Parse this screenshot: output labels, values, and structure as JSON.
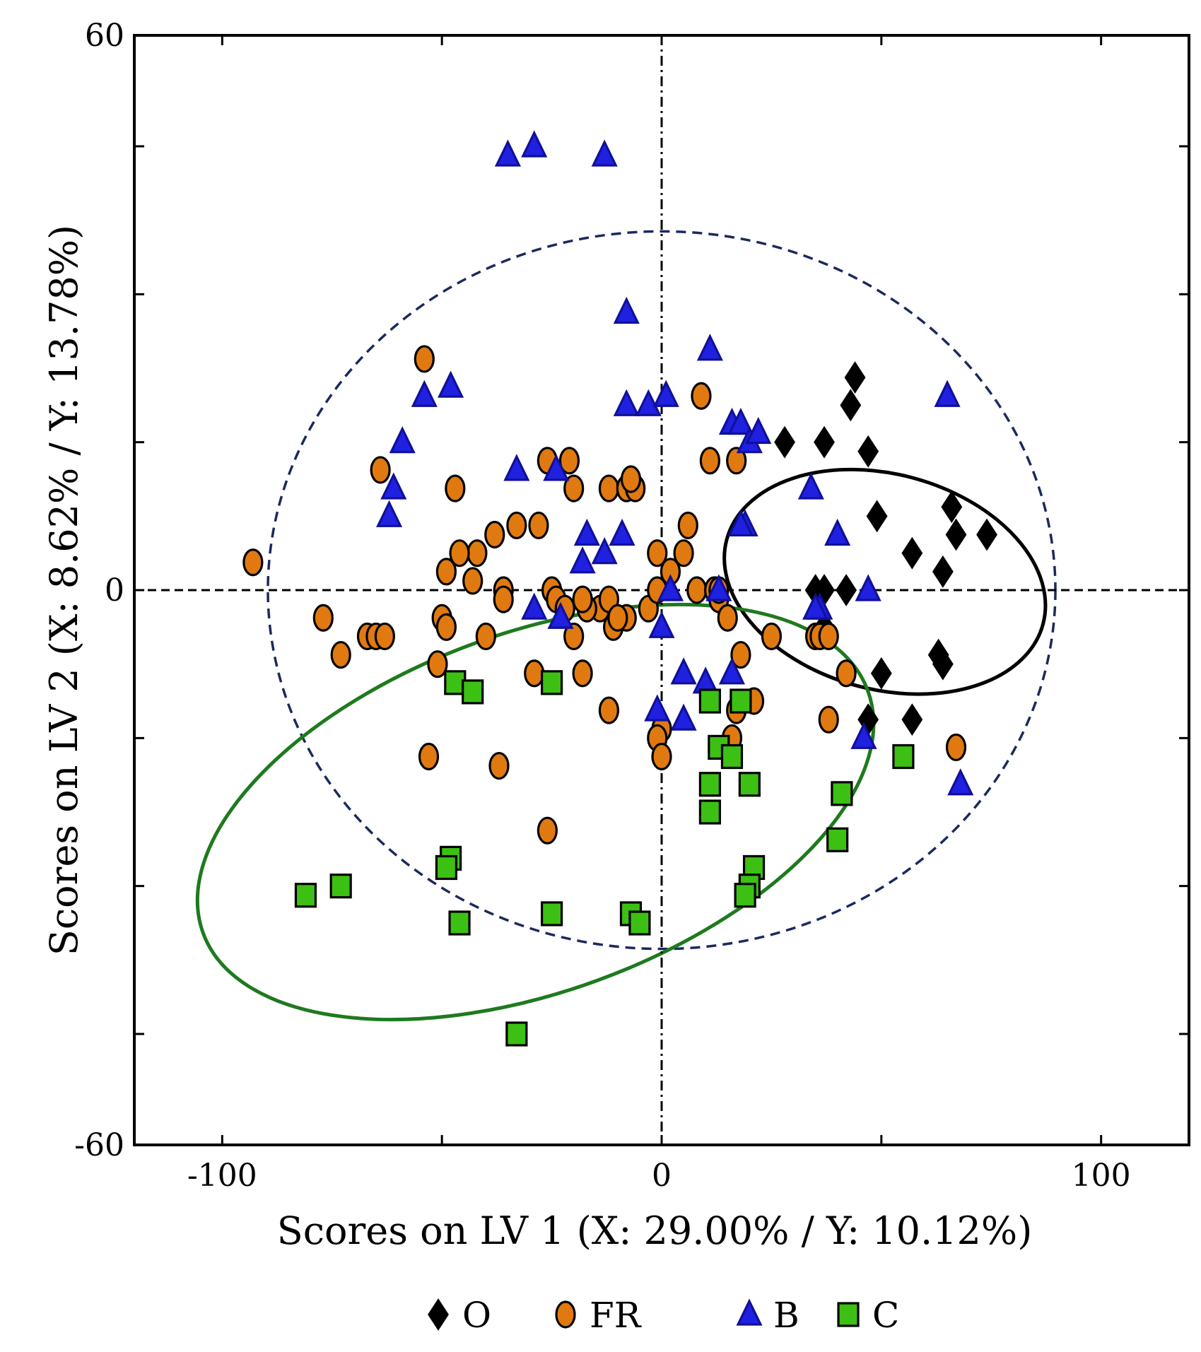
{
  "chart_data": {
    "type": "scatter",
    "xlabel": "Scores on LV 1 (X: 29.00% / Y: 10.12%)",
    "ylabel": "Scores on LV 2 (X: 8.62% / Y: 13.78%)",
    "xlim": [
      -120,
      120
    ],
    "ylim": [
      -60,
      60
    ],
    "xticks": [
      -100,
      0,
      100
    ],
    "xtick_labels": [
      "-100",
      "0",
      "100"
    ],
    "yticks": [
      -60,
      0,
      60
    ],
    "ytick_labels": [
      "-60",
      "0",
      "60"
    ],
    "minor_xticks": [
      -50,
      50
    ],
    "minor_yticks": [
      -48,
      -32,
      -16,
      16,
      32,
      48
    ],
    "reference_lines": {
      "x": 0,
      "y": 0,
      "style": "dashed"
    },
    "series": [
      {
        "name": "O",
        "marker": "diamond",
        "color": "#000000",
        "x": [
          44,
          43,
          28,
          37,
          47,
          49,
          66,
          67,
          74,
          57,
          64,
          35,
          37,
          42,
          37,
          50,
          63,
          64,
          47,
          57
        ],
        "y": [
          23,
          20,
          16,
          16,
          15,
          8,
          9,
          6,
          6,
          4,
          2,
          0,
          0,
          0,
          -4,
          -9,
          -7,
          -8,
          -14,
          -14
        ]
      },
      {
        "name": "FR",
        "marker": "circle",
        "color": "#E07A10",
        "x": [
          -54,
          9,
          -64,
          -47,
          -26,
          -21,
          -20,
          -12,
          -8,
          -6,
          -7,
          -1,
          6,
          11,
          17,
          5,
          -28,
          -33,
          -38,
          -42,
          -46,
          -49,
          -50,
          -49,
          -51,
          -43,
          -36,
          -36,
          -25,
          -14,
          -17,
          -8,
          -3,
          -1,
          2,
          8,
          12,
          13,
          13,
          15,
          18,
          -93,
          -77,
          -67,
          -65,
          -63,
          -73,
          -24,
          -22,
          -18,
          -12,
          -11,
          -10,
          -20,
          -40,
          -29,
          -18,
          -12,
          17,
          21,
          25,
          35,
          36,
          38,
          42,
          38,
          0,
          -1,
          0,
          -53,
          -37,
          -26,
          67,
          16
        ],
        "y": [
          25,
          21,
          13,
          11,
          14,
          14,
          11,
          11,
          11,
          11,
          12,
          4,
          7,
          14,
          14,
          4,
          7,
          7,
          6,
          4,
          4,
          2,
          -3,
          -4,
          -8,
          1,
          0,
          -1,
          0,
          -2,
          -2,
          -3,
          -2,
          0,
          2,
          0,
          0,
          -1,
          0,
          -3,
          -7,
          3,
          -3,
          -5,
          -5,
          -5,
          -7,
          -1,
          -2,
          -1,
          -1,
          -4,
          -3,
          -5,
          -5,
          -9,
          -9,
          -13,
          -13,
          -12,
          -5,
          -5,
          -5,
          -5,
          -9,
          -14,
          -15,
          -16,
          -18,
          -18,
          -19,
          -26,
          -17,
          -16
        ]
      },
      {
        "name": "B",
        "marker": "triangle",
        "color": "#2020E0",
        "x": [
          -35,
          -29,
          -13,
          -8,
          11,
          -54,
          -48,
          -59,
          -61,
          -62,
          -33,
          -24,
          -8,
          -3,
          1,
          16,
          18,
          20,
          22,
          65,
          34,
          40,
          47,
          -17,
          -9,
          -13,
          -18,
          2,
          19,
          18,
          13,
          -23,
          -29,
          0,
          5,
          10,
          16,
          -1,
          46,
          68,
          36,
          35,
          5
        ],
        "y": [
          47,
          48,
          47,
          30,
          26,
          21,
          22,
          16,
          11,
          8,
          13,
          13,
          20,
          20,
          21,
          18,
          18,
          16,
          17,
          21,
          11,
          6,
          0,
          6,
          6,
          4,
          3,
          0,
          7,
          7,
          0,
          -3,
          -2,
          -4,
          -9,
          -10,
          -9,
          -13,
          -16,
          -21,
          -2,
          -2,
          -14
        ]
      },
      {
        "name": "C",
        "marker": "square",
        "color": "#3CC014",
        "x": [
          -47,
          -43,
          -25,
          11,
          18,
          55,
          13,
          16,
          20,
          41,
          11,
          11,
          40,
          21,
          20,
          -48,
          -49,
          -81,
          -73,
          -46,
          -25,
          -7,
          -5,
          19,
          -33
        ],
        "y": [
          -10,
          -11,
          -10,
          -12,
          -12,
          -18,
          -17,
          -18,
          -21,
          -22,
          -21,
          -24,
          -27,
          -30,
          -32,
          -29,
          -30,
          -33,
          -32,
          -36,
          -35,
          -35,
          -36,
          -33,
          -48
        ]
      }
    ],
    "ellipses": [
      {
        "name": "confidence-all",
        "cx": 0,
        "cy": 0,
        "rx": 89.6,
        "ry": 38.8,
        "angle": 0,
        "color": "#1A2A5E",
        "dash": true
      },
      {
        "name": "group-O",
        "cx": 50.8,
        "cy": 0.9,
        "rx": 24.5,
        "ry": 17.7,
        "angle": 75,
        "color": "#000000",
        "dash": false
      },
      {
        "name": "group-C",
        "cx": -28.7,
        "cy": -24.0,
        "rx": 80.5,
        "ry": 19.4,
        "angle": 20,
        "color": "#1E7A1E",
        "dash": false
      }
    ],
    "legend": {
      "position": "bottom-center",
      "entries": [
        {
          "label": "O",
          "marker": "diamond",
          "color": "#000000"
        },
        {
          "label": "FR",
          "marker": "circle",
          "color": "#E07A10"
        },
        {
          "label": "B",
          "marker": "triangle",
          "color": "#2020E0"
        },
        {
          "label": "C",
          "marker": "square",
          "color": "#3CC014"
        }
      ]
    }
  }
}
